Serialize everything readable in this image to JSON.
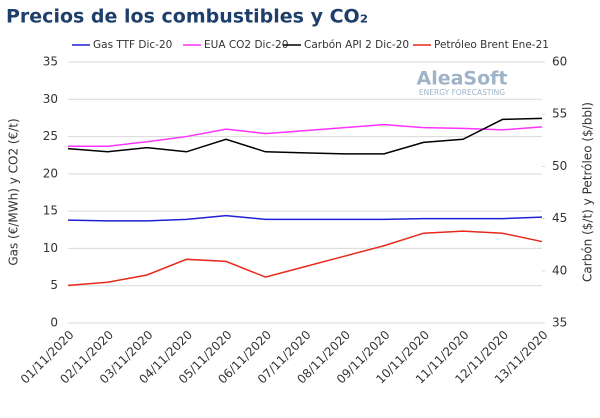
{
  "chart_data": {
    "type": "line",
    "title": "Precios de los combustibles y CO₂",
    "categories": [
      "01/11/2020",
      "02/11/2020",
      "03/11/2020",
      "04/11/2020",
      "05/11/2020",
      "06/11/2020",
      "07/11/2020",
      "08/11/2020",
      "09/11/2020",
      "10/11/2020",
      "11/11/2020",
      "12/11/2020",
      "13/11/2020"
    ],
    "series": [
      {
        "name": "Gas TTF Dic-20",
        "color": "#1f1fd6",
        "values": [
          13.8,
          13.7,
          13.7,
          13.9,
          14.4,
          13.9,
          13.9,
          13.9,
          13.9,
          14.0,
          14.0,
          14.0,
          14.2
        ]
      },
      {
        "name": "EUA CO2 Dic-20",
        "color": "#ff33ff",
        "values": [
          23.7,
          23.7,
          24.3,
          25.0,
          26.0,
          25.4,
          25.8,
          26.2,
          26.6,
          26.2,
          26.1,
          25.9,
          26.3
        ]
      },
      {
        "name": "Carbón API 2 Dic-20",
        "color": "#000000",
        "axis": "y2",
        "values": [
          51.7,
          51.4,
          51.8,
          51.4,
          52.6,
          51.4,
          51.3,
          51.2,
          51.2,
          52.3,
          52.6,
          54.5,
          54.6
        ]
      },
      {
        "name": "Petróleo Brent Ene-21",
        "color": "#e8291c",
        "axis": "y2",
        "values": [
          38.6,
          38.9,
          39.6,
          41.1,
          40.9,
          39.4,
          40.4,
          41.4,
          42.4,
          43.6,
          43.8,
          43.6,
          42.8
        ]
      }
    ],
    "ylabel": "Gas (€/MWh) y CO2 (€/t)",
    "y2label": "Carbón ($/t) y Petróleo ($/bbl)",
    "ylim": [
      0,
      35
    ],
    "yticks": [
      0,
      5,
      10,
      15,
      20,
      25,
      30,
      35
    ],
    "y2lim": [
      35,
      60
    ],
    "y2ticks": [
      35,
      40,
      45,
      50,
      55,
      60
    ],
    "grid": true,
    "annotations": [
      "AleaSoft",
      "ENERGY FORECASTING"
    ]
  }
}
